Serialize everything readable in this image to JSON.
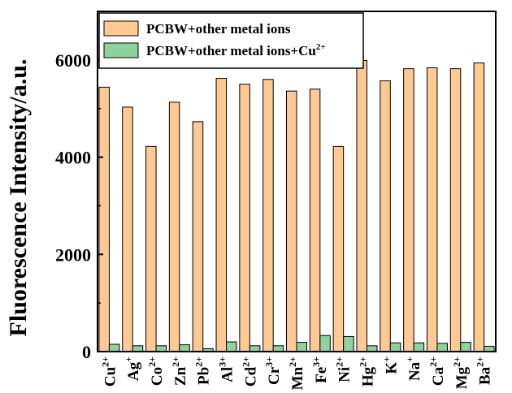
{
  "chart_data": {
    "type": "bar",
    "title": "",
    "xlabel": "",
    "ylabel": "Fluorescence Intensity/a.u.",
    "ylim": [
      0,
      7000
    ],
    "yticks": [
      "0",
      "2000",
      "4000",
      "6000"
    ],
    "ytick_values": [
      0,
      2000,
      4000,
      6000
    ],
    "grid": false,
    "legend_position": "top",
    "categories": [
      {
        "base": "Cu",
        "charge": "2+"
      },
      {
        "base": "Ag",
        "charge": "+"
      },
      {
        "base": "Co",
        "charge": "2+"
      },
      {
        "base": "Zn",
        "charge": "2+"
      },
      {
        "base": "Pb",
        "charge": "2+"
      },
      {
        "base": "Al",
        "charge": "3+"
      },
      {
        "base": "Cd",
        "charge": "2+"
      },
      {
        "base": "Cr",
        "charge": "3+"
      },
      {
        "base": "Mn",
        "charge": "2+"
      },
      {
        "base": "Fe",
        "charge": "3+"
      },
      {
        "base": "Ni",
        "charge": "2+"
      },
      {
        "base": "Hg",
        "charge": "2+"
      },
      {
        "base": "K",
        "charge": "+"
      },
      {
        "base": "Na",
        "charge": "+"
      },
      {
        "base": "Ca",
        "charge": "2+"
      },
      {
        "base": "Mg",
        "charge": "2+"
      },
      {
        "base": "Ba",
        "charge": "2+"
      }
    ],
    "series": [
      {
        "name": "PCBW+other metal ions",
        "color": "#FFC994",
        "values": [
          5440,
          5030,
          4220,
          5130,
          4730,
          5620,
          5500,
          5600,
          5360,
          5400,
          4220,
          5990,
          5570,
          5820,
          5840,
          5820,
          5940
        ]
      },
      {
        "name": "PCBW+other metal ions+Cu",
        "name_superscript": "2+",
        "color": "#8FD1A0",
        "values": [
          150,
          120,
          120,
          140,
          60,
          200,
          120,
          120,
          190,
          330,
          310,
          120,
          180,
          180,
          170,
          190,
          110
        ]
      }
    ]
  }
}
